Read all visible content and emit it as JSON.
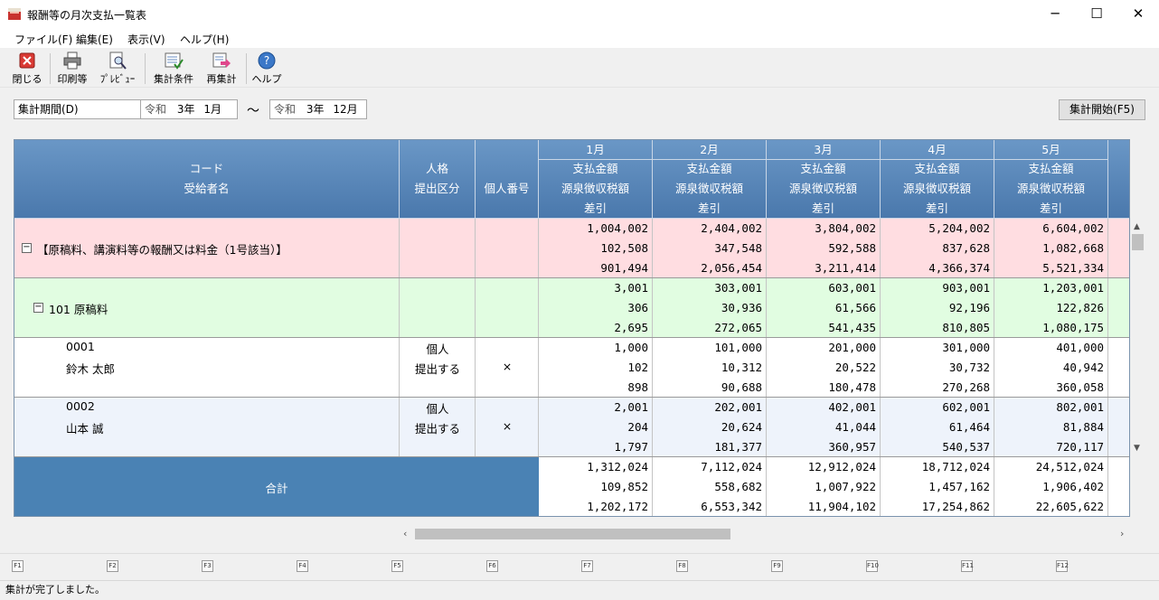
{
  "window": {
    "title": "報酬等の月次支払一覧表",
    "minimize": "─",
    "maximize": "☐",
    "close": "✕"
  },
  "menu": [
    "ファイル(F)",
    "編集(E)",
    "表示(V)",
    "ヘルプ(H)"
  ],
  "toolbar": [
    {
      "label": "閉じる",
      "icon": "close-icon"
    },
    {
      "label": "印刷等",
      "icon": "printer-icon"
    },
    {
      "label": "ﾌﾟﾚﾋﾞｭｰ",
      "icon": "preview-icon"
    },
    {
      "label": "集計条件",
      "icon": "conditions-icon"
    },
    {
      "label": "再集計",
      "icon": "recalc-icon"
    },
    {
      "label": "ヘルプ",
      "icon": "help-icon"
    }
  ],
  "period": {
    "label": "集計期間(D)",
    "from_era": "令和",
    "from_year": "3年",
    "from_month": "1月",
    "tilde": "～",
    "to_era": "令和",
    "to_year": "3年",
    "to_month": "12月"
  },
  "start_button": "集計開始(F5)",
  "headers": {
    "code": "コード",
    "recipient": "受給者名",
    "persona": "人格",
    "submit": "提出区分",
    "mynumber": "個人番号",
    "months": [
      "1月",
      "2月",
      "3月",
      "4月",
      "5月"
    ],
    "payment": "支払金額",
    "withholding": "源泉徴収税額",
    "net": "差引"
  },
  "rows": [
    {
      "type": "group",
      "toggle": "−",
      "name": "【原稿料、講演料等の報酬又は料金（1号該当）】",
      "values": [
        [
          "1,004,002",
          "102,508",
          "901,494"
        ],
        [
          "2,404,002",
          "347,548",
          "2,056,454"
        ],
        [
          "3,804,002",
          "592,588",
          "3,211,414"
        ],
        [
          "5,204,002",
          "837,628",
          "4,366,374"
        ],
        [
          "6,604,002",
          "1,082,668",
          "5,521,334"
        ]
      ]
    },
    {
      "type": "subgroup",
      "toggle": "−",
      "name": "101 原稿料",
      "values": [
        [
          "3,001",
          "306",
          "2,695"
        ],
        [
          "303,001",
          "30,936",
          "272,065"
        ],
        [
          "603,001",
          "61,566",
          "541,435"
        ],
        [
          "903,001",
          "92,196",
          "810,805"
        ],
        [
          "1,203,001",
          "122,826",
          "1,080,175"
        ]
      ]
    },
    {
      "type": "person",
      "code": "0001",
      "name": "鈴木 太郎",
      "persona": "個人",
      "submit": "提出する",
      "mynumber": "×",
      "values": [
        [
          "1,000",
          "102",
          "898"
        ],
        [
          "101,000",
          "10,312",
          "90,688"
        ],
        [
          "201,000",
          "20,522",
          "180,478"
        ],
        [
          "301,000",
          "30,732",
          "270,268"
        ],
        [
          "401,000",
          "40,942",
          "360,058"
        ]
      ]
    },
    {
      "type": "person",
      "code": "0002",
      "name": "山本 誠",
      "persona": "個人",
      "submit": "提出する",
      "mynumber": "×",
      "values": [
        [
          "2,001",
          "204",
          "1,797"
        ],
        [
          "202,001",
          "20,624",
          "181,377"
        ],
        [
          "402,001",
          "41,044",
          "360,957"
        ],
        [
          "602,001",
          "61,464",
          "540,537"
        ],
        [
          "802,001",
          "81,884",
          "720,117"
        ]
      ]
    }
  ],
  "total": {
    "label": "合計",
    "values": [
      [
        "1,312,024",
        "109,852",
        "1,202,172"
      ],
      [
        "7,112,024",
        "558,682",
        "6,553,342"
      ],
      [
        "12,912,024",
        "1,007,922",
        "11,904,102"
      ],
      [
        "18,712,024",
        "1,457,162",
        "17,254,862"
      ],
      [
        "24,512,024",
        "1,906,402",
        "22,605,622"
      ]
    ]
  },
  "fkeys": [
    "F1",
    "F2",
    "F3",
    "F4",
    "F5",
    "F6",
    "F7",
    "F8",
    "F9",
    "F10",
    "F11",
    "F12"
  ],
  "status": "集計が完了しました。",
  "colors": {
    "header": "#4a78ac",
    "group_bg": "#ffdde1",
    "subgroup_bg": "#e1fde1",
    "person_alt_bg": "#eef3fb",
    "total_bg": "#4a82b4"
  }
}
